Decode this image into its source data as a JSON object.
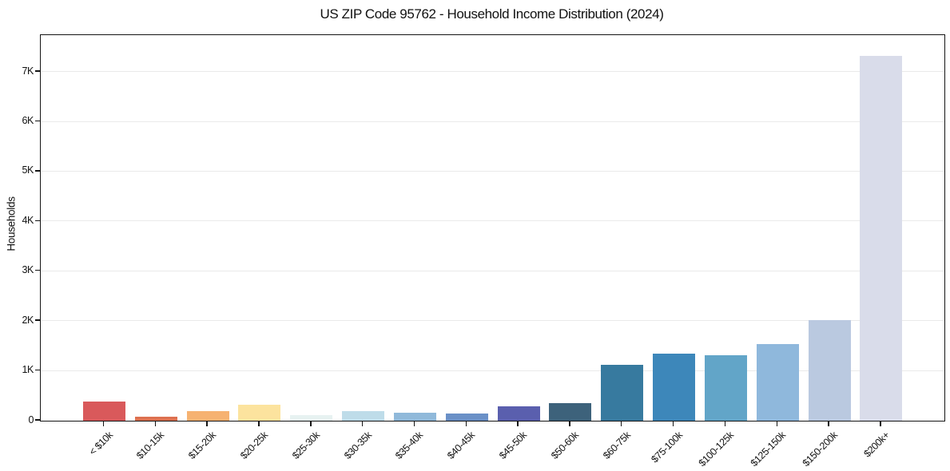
{
  "chart_data": {
    "type": "bar",
    "title": "US ZIP Code 95762 - Household Income Distribution (2024)",
    "xlabel": "",
    "ylabel": "Households",
    "categories": [
      "< $10k",
      "$10-15k",
      "$15-20k",
      "$20-25k",
      "$25-30k",
      "$30-35k",
      "$35-40k",
      "$40-45k",
      "$45-50k",
      "$50-60k",
      "$60-75k",
      "$75-100k",
      "$100-125k",
      "$125-150k",
      "$150-200k",
      "$200k+"
    ],
    "values": [
      380,
      75,
      185,
      325,
      105,
      190,
      165,
      140,
      290,
      360,
      1120,
      1350,
      1315,
      1540,
      2020,
      7330
    ],
    "bar_colors": [
      "#d9595b",
      "#dd7150",
      "#f6b271",
      "#fce39e",
      "#e7f2f1",
      "#bedce9",
      "#90b9da",
      "#6a90c7",
      "#5a5fae",
      "#3d627b",
      "#377a9f",
      "#3d87ba",
      "#62a5c8",
      "#8fb8dc",
      "#bac9e0",
      "#d9dcea"
    ],
    "yticks": [
      {
        "value": 0,
        "label": "0"
      },
      {
        "value": 1000,
        "label": "1K"
      },
      {
        "value": 2000,
        "label": "2K"
      },
      {
        "value": 3000,
        "label": "3K"
      },
      {
        "value": 4000,
        "label": "4K"
      },
      {
        "value": 5000,
        "label": "5K"
      },
      {
        "value": 6000,
        "label": "6K"
      },
      {
        "value": 7000,
        "label": "7K"
      }
    ],
    "ylim": [
      0,
      7740
    ],
    "grid": "horizontal",
    "legend": "none",
    "gridline_color": "#eaeaea",
    "axis_color": "#141414"
  }
}
